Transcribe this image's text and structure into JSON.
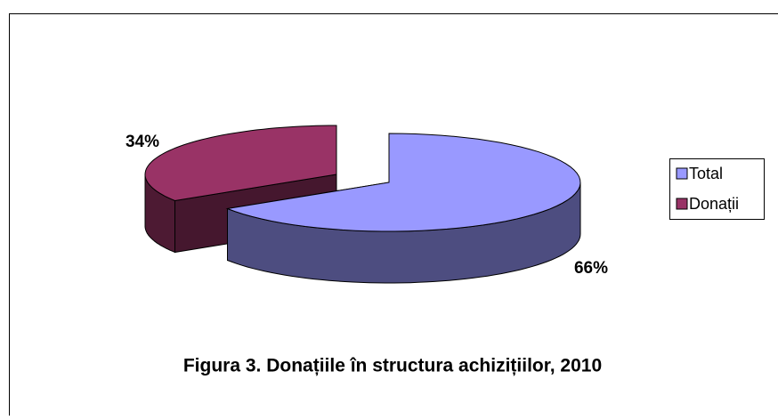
{
  "chart_data": {
    "type": "pie",
    "title": "Figura 3. Donațiile în structura achizițiilor, 2010",
    "categories": [
      "Total",
      "Donații"
    ],
    "values": [
      66,
      34
    ],
    "value_labels": [
      "66%",
      "34%"
    ],
    "colors": [
      "#9999ff",
      "#993366"
    ],
    "legend": "right"
  }
}
